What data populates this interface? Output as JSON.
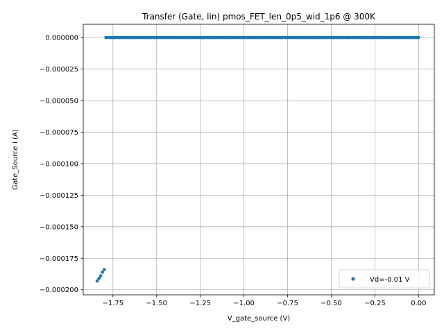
{
  "chart_data": {
    "type": "scatter",
    "title": "Transfer (Gate, lin) pmos_FET_len_0p5_wid_1p6 @ 300K",
    "xlabel": "V_gate_source (V)",
    "ylabel": "Gate_Source I (A)",
    "xlim": [
      -1.92,
      0.09
    ],
    "ylim": [
      -0.000204,
      1.05e-05
    ],
    "xticks": [
      -1.75,
      -1.5,
      -1.25,
      -1.0,
      -0.75,
      -0.5,
      -0.25,
      0.0
    ],
    "xtick_labels": [
      "−1.75",
      "−1.50",
      "−1.25",
      "−1.00",
      "−0.75",
      "−0.50",
      "−0.25",
      "0.00"
    ],
    "yticks": [
      0.0,
      -2.5e-05,
      -5e-05,
      -7.5e-05,
      -0.0001,
      -0.000125,
      -0.00015,
      -0.000175,
      -0.0002
    ],
    "ytick_labels": [
      "0.000000",
      "−0.000025",
      "−0.000050",
      "−0.000075",
      "−0.000100",
      "−0.000125",
      "−0.000150",
      "−0.000175",
      "−0.000200"
    ],
    "grid": true,
    "legend_position": "lower right",
    "series": [
      {
        "name": "Vd=-0.01 V",
        "color": "#1f77b4",
        "flat_segment": {
          "x_start": -1.79,
          "x_end": 0.0,
          "step": 0.01,
          "y": 0.0
        },
        "points": [
          {
            "x": -1.84,
            "y": -0.000193
          },
          {
            "x": -1.83,
            "y": -0.000191
          },
          {
            "x": -1.82,
            "y": -0.000189
          },
          {
            "x": -1.81,
            "y": -0.000186
          },
          {
            "x": -1.8,
            "y": -0.000184
          }
        ]
      }
    ]
  }
}
